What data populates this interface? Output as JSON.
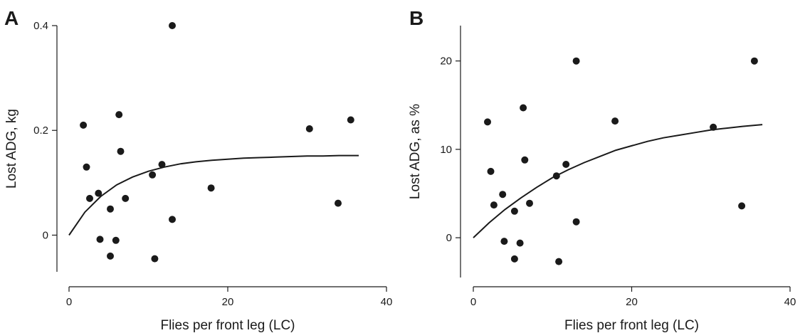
{
  "chart_data": [
    {
      "panel": "A",
      "type": "scatter",
      "xlabel": "Flies per front leg (LC)",
      "ylabel": "Lost ADG, kg",
      "xlim": [
        0,
        40
      ],
      "ylim": [
        -0.07,
        0.4
      ],
      "xticks": [
        0,
        20,
        40
      ],
      "yticks": [
        0,
        0.2,
        0.4
      ],
      "xtick_labels": [
        "0",
        "20",
        "40"
      ],
      "ytick_labels": [
        "0",
        "0.2",
        "0.4"
      ],
      "grid": false,
      "series": [
        {
          "kind": "points",
          "x": [
            1.8,
            2.2,
            2.6,
            3.7,
            3.9,
            5.2,
            5.2,
            5.9,
            6.3,
            6.5,
            7.1,
            10.5,
            10.8,
            11.7,
            13.0,
            13.0,
            17.9,
            30.3,
            33.9,
            35.5
          ],
          "y": [
            0.21,
            0.13,
            0.07,
            0.08,
            -0.008,
            0.05,
            -0.04,
            -0.01,
            0.23,
            0.16,
            0.07,
            0.115,
            -0.045,
            0.135,
            0.4,
            0.03,
            0.09,
            0.203,
            0.061,
            0.22
          ]
        },
        {
          "kind": "fit",
          "x": [
            0,
            2,
            4,
            6,
            8,
            10,
            12,
            14,
            16,
            18,
            20,
            22,
            24,
            26,
            28,
            30,
            32,
            34,
            36.5
          ],
          "y": [
            0,
            0.044,
            0.074,
            0.096,
            0.111,
            0.122,
            0.13,
            0.136,
            0.14,
            0.143,
            0.145,
            0.147,
            0.148,
            0.149,
            0.15,
            0.151,
            0.151,
            0.152,
            0.152
          ]
        }
      ]
    },
    {
      "panel": "B",
      "type": "scatter",
      "xlabel": "Flies per front leg (LC)",
      "ylabel": "Lost  ADG, as %",
      "xlim": [
        0,
        40
      ],
      "ylim": [
        -4.5,
        24
      ],
      "xticks": [
        0,
        20,
        40
      ],
      "yticks": [
        0,
        10,
        20
      ],
      "xtick_labels": [
        "0",
        "20",
        "40"
      ],
      "ytick_labels": [
        "0",
        "10",
        "20"
      ],
      "grid": false,
      "series": [
        {
          "kind": "points",
          "x": [
            1.8,
            2.2,
            2.6,
            3.7,
            3.9,
            5.2,
            5.2,
            5.9,
            6.3,
            6.5,
            7.1,
            10.5,
            10.8,
            11.7,
            13.0,
            13.0,
            17.9,
            30.3,
            33.9,
            35.5
          ],
          "y": [
            13.1,
            7.5,
            3.7,
            4.9,
            -0.4,
            3.0,
            -2.4,
            -0.6,
            14.7,
            8.8,
            3.9,
            7.0,
            -2.7,
            8.3,
            20.0,
            1.8,
            13.2,
            12.5,
            3.6,
            20.0
          ]
        },
        {
          "kind": "fit",
          "x": [
            0,
            2,
            4,
            6,
            8,
            10,
            12,
            14,
            16,
            18,
            20,
            22,
            24,
            26,
            28,
            30,
            32,
            34,
            36.5
          ],
          "y": [
            0,
            1.7,
            3.2,
            4.5,
            5.7,
            6.8,
            7.7,
            8.5,
            9.2,
            9.9,
            10.4,
            10.9,
            11.3,
            11.6,
            11.9,
            12.2,
            12.4,
            12.6,
            12.8
          ]
        }
      ]
    }
  ]
}
